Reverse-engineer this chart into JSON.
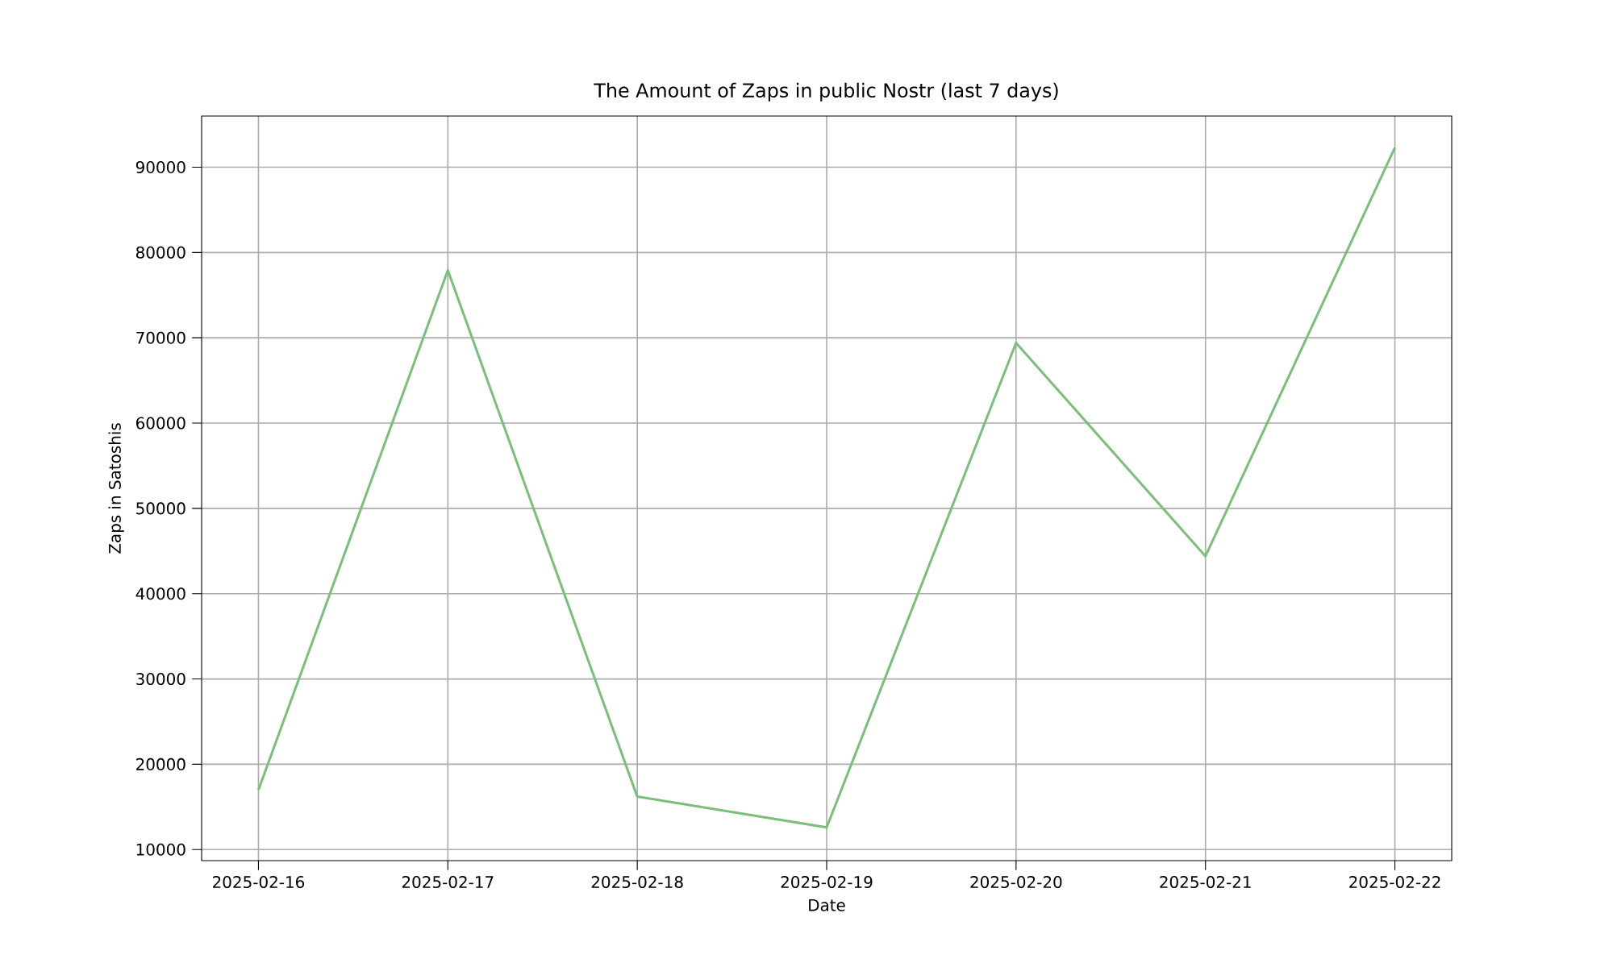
{
  "chart_data": {
    "type": "line",
    "title": "The Amount of Zaps in public Nostr (last 7 days)",
    "xlabel": "Date",
    "ylabel": "Zaps in Satoshis",
    "x": [
      "2025-02-16",
      "2025-02-17",
      "2025-02-18",
      "2025-02-19",
      "2025-02-20",
      "2025-02-21",
      "2025-02-22"
    ],
    "series": [
      {
        "color": "#7bbf7b",
        "values": [
          17000,
          77900,
          16200,
          12600,
          69400,
          44400,
          92300
        ]
      }
    ],
    "xlim": [
      "2025-02-15T16:48",
      "2025-02-22T07:12"
    ],
    "ylim": [
      8700,
      96000
    ],
    "xticks": [
      "2025-02-16",
      "2025-02-17",
      "2025-02-18",
      "2025-02-19",
      "2025-02-20",
      "2025-02-21",
      "2025-02-22"
    ],
    "yticks": [
      10000,
      20000,
      30000,
      40000,
      50000,
      60000,
      70000,
      80000,
      90000
    ],
    "grid": true,
    "marker": "none",
    "line_style": "solid"
  }
}
